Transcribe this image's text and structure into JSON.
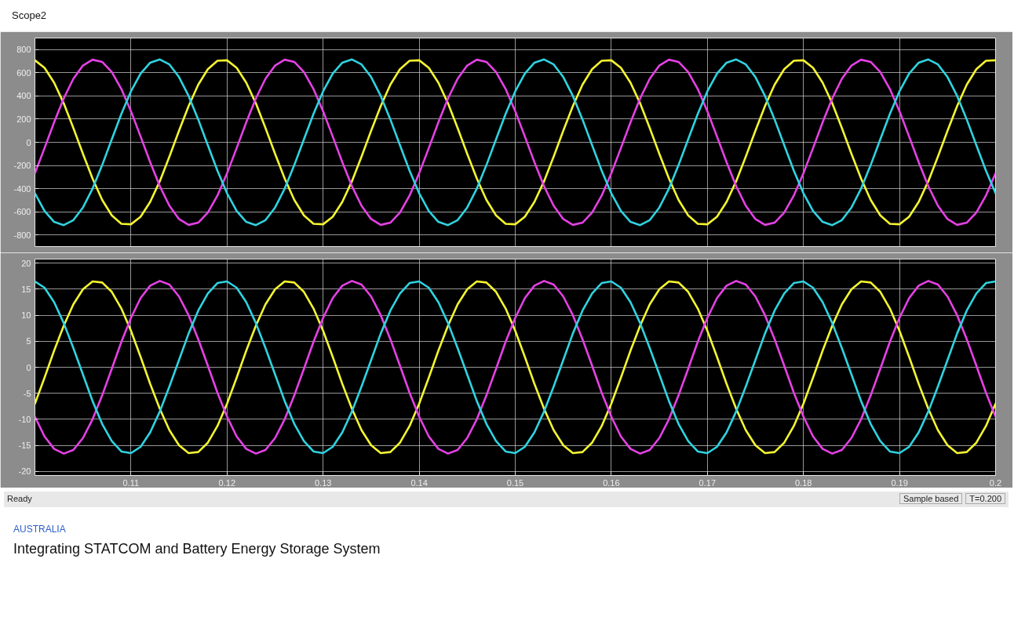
{
  "chart_data": [
    {
      "type": "line",
      "title": "Scope2",
      "x": [
        0.1,
        0.101,
        0.102,
        0.103,
        0.104,
        0.105,
        0.106,
        0.107,
        0.108,
        0.109,
        0.11,
        0.111,
        0.112,
        0.113,
        0.114,
        0.115,
        0.116,
        0.117,
        0.118,
        0.119,
        0.12,
        0.121,
        0.122,
        0.123,
        0.124,
        0.125,
        0.126,
        0.127,
        0.128,
        0.129,
        0.13,
        0.131,
        0.132,
        0.133,
        0.134,
        0.135,
        0.136,
        0.137,
        0.138,
        0.139,
        0.14,
        0.141,
        0.142,
        0.143,
        0.144,
        0.145,
        0.146,
        0.147,
        0.148,
        0.149,
        0.15,
        0.151,
        0.152,
        0.153,
        0.154,
        0.155,
        0.156,
        0.157,
        0.158,
        0.159,
        0.16,
        0.161,
        0.162,
        0.163,
        0.164,
        0.165,
        0.166,
        0.167,
        0.168,
        0.169,
        0.17,
        0.171,
        0.172,
        0.173,
        0.174,
        0.175,
        0.176,
        0.177,
        0.178,
        0.179,
        0.18,
        0.181,
        0.182,
        0.183,
        0.184,
        0.185,
        0.186,
        0.187,
        0.188,
        0.189,
        0.19,
        0.191,
        0.192,
        0.193,
        0.194,
        0.195,
        0.196,
        0.197,
        0.198,
        0.199,
        0.2
      ],
      "series": [
        {
          "color": "#f5f531",
          "values": [
            708,
            643,
            514,
            336,
            124,
            -100,
            -313,
            -497,
            -631,
            -704,
            -708,
            -643,
            -514,
            -336,
            -124,
            100,
            313,
            497,
            631,
            704,
            708,
            643,
            514,
            336,
            124,
            -100,
            -313,
            -497,
            -631,
            -704,
            -708,
            -643,
            -514,
            -336,
            -124,
            100,
            313,
            497,
            631,
            704,
            708,
            643,
            514,
            336,
            124,
            -100,
            -313,
            -497,
            -631,
            -704,
            -708,
            -643,
            -514,
            -336,
            -124,
            100,
            313,
            497,
            631,
            704,
            708,
            643,
            514,
            336,
            124,
            -100,
            -313,
            -497,
            -631,
            -704,
            -708,
            -643,
            -514,
            -336,
            -124,
            100,
            313,
            497,
            631,
            704,
            708,
            643,
            514,
            336,
            124,
            -100,
            -313,
            -497,
            -631,
            -704,
            -708,
            -643,
            -514,
            -336,
            -124,
            100,
            313,
            497,
            631,
            704,
            708
          ]
        },
        {
          "color": "#e541e5",
          "values": [
            -268,
            -50,
            173,
            379,
            548,
            663,
            713,
            694,
            606,
            460,
            268,
            50,
            -173,
            -379,
            -548,
            -663,
            -713,
            -694,
            -606,
            -460,
            -268,
            -50,
            173,
            379,
            548,
            663,
            713,
            694,
            606,
            460,
            268,
            50,
            -173,
            -379,
            -548,
            -663,
            -713,
            -694,
            -606,
            -460,
            -268,
            -50,
            173,
            379,
            548,
            663,
            713,
            694,
            606,
            460,
            268,
            50,
            -173,
            -379,
            -548,
            -663,
            -713,
            -694,
            -606,
            -460,
            -268,
            -50,
            173,
            379,
            548,
            663,
            713,
            694,
            606,
            460,
            268,
            50,
            -173,
            -379,
            -548,
            -663,
            -713,
            -694,
            -606,
            -460,
            -268,
            -50,
            173,
            379,
            548,
            663,
            713,
            694,
            606,
            460,
            268,
            50,
            -173,
            -379,
            -548,
            -663,
            -713,
            -694,
            -606,
            -460,
            -268
          ]
        },
        {
          "color": "#2fd3e0",
          "values": [
            -440,
            -593,
            -687,
            -715,
            -672,
            -563,
            -400,
            -197,
            25,
            245,
            440,
            593,
            687,
            715,
            672,
            563,
            400,
            197,
            -25,
            -245,
            -440,
            -593,
            -687,
            -715,
            -672,
            -563,
            -400,
            -197,
            25,
            245,
            440,
            593,
            687,
            715,
            672,
            563,
            400,
            197,
            -25,
            -245,
            -440,
            -593,
            -687,
            -715,
            -672,
            -563,
            -400,
            -197,
            25,
            245,
            440,
            593,
            687,
            715,
            672,
            563,
            400,
            197,
            -25,
            -245,
            -440,
            -593,
            -687,
            -715,
            -672,
            -563,
            -400,
            -197,
            25,
            245,
            440,
            593,
            687,
            715,
            672,
            563,
            400,
            197,
            -25,
            -245,
            -440,
            -593,
            -687,
            -715,
            -672,
            -563,
            -400,
            -197,
            25,
            245,
            440,
            593,
            687,
            715,
            672,
            563,
            400,
            197,
            -25,
            -245,
            -440
          ]
        }
      ],
      "xlim": [
        0.1,
        0.2
      ],
      "xticks": [
        0.11,
        0.12,
        0.13,
        0.14,
        0.15,
        0.16,
        0.17,
        0.18,
        0.19,
        0.2
      ],
      "ylim": [
        -900,
        900
      ],
      "yticks": [
        -800,
        -600,
        -400,
        -200,
        0,
        200,
        400,
        600,
        800
      ],
      "tick_labels": "y",
      "grid": true,
      "line_style": "solid"
    },
    {
      "type": "line",
      "title": "Integrating STATCOM and Battery Energy Storage System",
      "subtitle": "AUSTRALIA",
      "annotations": [
        "Ready",
        "Sample based",
        "T=0.200"
      ],
      "x": [
        0.1,
        0.101,
        0.102,
        0.103,
        0.104,
        0.105,
        0.106,
        0.107,
        0.108,
        0.109,
        0.11,
        0.111,
        0.112,
        0.113,
        0.114,
        0.115,
        0.116,
        0.117,
        0.118,
        0.119,
        0.12,
        0.121,
        0.122,
        0.123,
        0.124,
        0.125,
        0.126,
        0.127,
        0.128,
        0.129,
        0.13,
        0.131,
        0.132,
        0.133,
        0.134,
        0.135,
        0.136,
        0.137,
        0.138,
        0.139,
        0.14,
        0.141,
        0.142,
        0.143,
        0.144,
        0.145,
        0.146,
        0.147,
        0.148,
        0.149,
        0.15,
        0.151,
        0.152,
        0.153,
        0.154,
        0.155,
        0.156,
        0.157,
        0.158,
        0.159,
        0.16,
        0.161,
        0.162,
        0.163,
        0.164,
        0.165,
        0.166,
        0.167,
        0.168,
        0.169,
        0.17,
        0.171,
        0.172,
        0.173,
        0.174,
        0.175,
        0.176,
        0.177,
        0.178,
        0.179,
        0.18,
        0.181,
        0.182,
        0.183,
        0.184,
        0.185,
        0.186,
        0.187,
        0.188,
        0.189,
        0.19,
        0.191,
        0.192,
        0.193,
        0.194,
        0.195,
        0.196,
        0.197,
        0.198,
        0.199,
        0.2
      ],
      "series": [
        {
          "color": "#f5f531",
          "values": [
            -7,
            -2,
            3.2,
            8,
            12.1,
            15,
            16.5,
            16.3,
            14.5,
            11.3,
            7,
            2,
            -3.2,
            -8,
            -12.1,
            -15,
            -16.5,
            -16.3,
            -14.5,
            -11.3,
            -7,
            -2,
            3.2,
            8,
            12.1,
            15,
            16.5,
            16.3,
            14.5,
            11.3,
            7,
            2,
            -3.2,
            -8,
            -12.1,
            -15,
            -16.5,
            -16.3,
            -14.5,
            -11.3,
            -7,
            -2,
            3.2,
            8,
            12.1,
            15,
            16.5,
            16.3,
            14.5,
            11.3,
            7,
            2,
            -3.2,
            -8,
            -12.1,
            -15,
            -16.5,
            -16.3,
            -14.5,
            -11.3,
            -7,
            -2,
            3.2,
            8,
            12.1,
            15,
            16.5,
            16.3,
            14.5,
            11.3,
            7,
            2,
            -3.2,
            -8,
            -12.1,
            -15,
            -16.5,
            -16.3,
            -14.5,
            -11.3,
            -7,
            -2,
            3.2,
            8,
            12.1,
            15,
            16.5,
            16.3,
            14.5,
            11.3,
            7,
            2,
            -3.2,
            -8,
            -12.1,
            -15,
            -16.5,
            -16.3,
            -14.5,
            -11.3,
            -7
          ]
        },
        {
          "color": "#e541e5",
          "values": [
            -9.5,
            -13.3,
            -15.7,
            -16.6,
            -15.9,
            -13.6,
            -10,
            -5.4,
            -0.3,
            4.9,
            9.5,
            13.3,
            15.7,
            16.6,
            15.9,
            13.6,
            10,
            5.4,
            0.3,
            -4.9,
            -9.5,
            -13.3,
            -15.7,
            -16.6,
            -15.9,
            -13.6,
            -10,
            -5.4,
            -0.3,
            4.9,
            9.5,
            13.3,
            15.7,
            16.6,
            15.9,
            13.6,
            10,
            5.4,
            0.3,
            -4.9,
            -9.5,
            -13.3,
            -15.7,
            -16.6,
            -15.9,
            -13.6,
            -10,
            -5.4,
            -0.3,
            4.9,
            9.5,
            13.3,
            15.7,
            16.6,
            15.9,
            13.6,
            10,
            5.4,
            0.3,
            -4.9,
            -9.5,
            -13.3,
            -15.7,
            -16.6,
            -15.9,
            -13.6,
            -10,
            -5.4,
            -0.3,
            4.9,
            9.5,
            13.3,
            15.7,
            16.6,
            15.9,
            13.6,
            10,
            5.4,
            0.3,
            -4.9,
            -9.5,
            -13.3,
            -15.7,
            -16.6,
            -15.9,
            -13.6,
            -10,
            -5.4,
            -0.3,
            4.9,
            9.5,
            13.3,
            15.7,
            16.6,
            15.9,
            13.6,
            10,
            5.4,
            0.3,
            -4.9,
            -9.5
          ]
        },
        {
          "color": "#2fd3e0",
          "values": [
            16.5,
            15.3,
            12.5,
            8.5,
            3.7,
            -1.4,
            -6.5,
            -10.9,
            -14.2,
            -16.2,
            -16.5,
            -15.3,
            -12.5,
            -8.5,
            -3.7,
            1.4,
            6.5,
            10.9,
            14.2,
            16.2,
            16.5,
            15.3,
            12.5,
            8.5,
            3.7,
            -1.4,
            -6.5,
            -10.9,
            -14.2,
            -16.2,
            -16.5,
            -15.3,
            -12.5,
            -8.5,
            -3.7,
            1.4,
            6.5,
            10.9,
            14.2,
            16.2,
            16.5,
            15.3,
            12.5,
            8.5,
            3.7,
            -1.4,
            -6.5,
            -10.9,
            -14.2,
            -16.2,
            -16.5,
            -15.3,
            -12.5,
            -8.5,
            -3.7,
            1.4,
            6.5,
            10.9,
            14.2,
            16.2,
            16.5,
            15.3,
            12.5,
            8.5,
            3.7,
            -1.4,
            -6.5,
            -10.9,
            -14.2,
            -16.2,
            -16.5,
            -15.3,
            -12.5,
            -8.5,
            -3.7,
            1.4,
            6.5,
            10.9,
            14.2,
            16.2,
            16.5,
            15.3,
            12.5,
            8.5,
            3.7,
            -1.4,
            -6.5,
            -10.9,
            -14.2,
            -16.2,
            -16.5,
            -15.3,
            -12.5,
            -8.5,
            -3.7,
            1.4,
            6.5,
            10.9,
            14.2,
            16.2,
            16.5
          ]
        }
      ],
      "xlim": [
        0.1,
        0.2
      ],
      "xticks": [
        0.11,
        0.12,
        0.13,
        0.14,
        0.15,
        0.16,
        0.17,
        0.18,
        0.19,
        0.2
      ],
      "ylim": [
        -20.8,
        20.8
      ],
      "yticks": [
        -20,
        -15,
        -10,
        -5,
        0,
        5,
        10,
        15,
        20
      ],
      "grid": true,
      "line_style": "solid"
    }
  ]
}
